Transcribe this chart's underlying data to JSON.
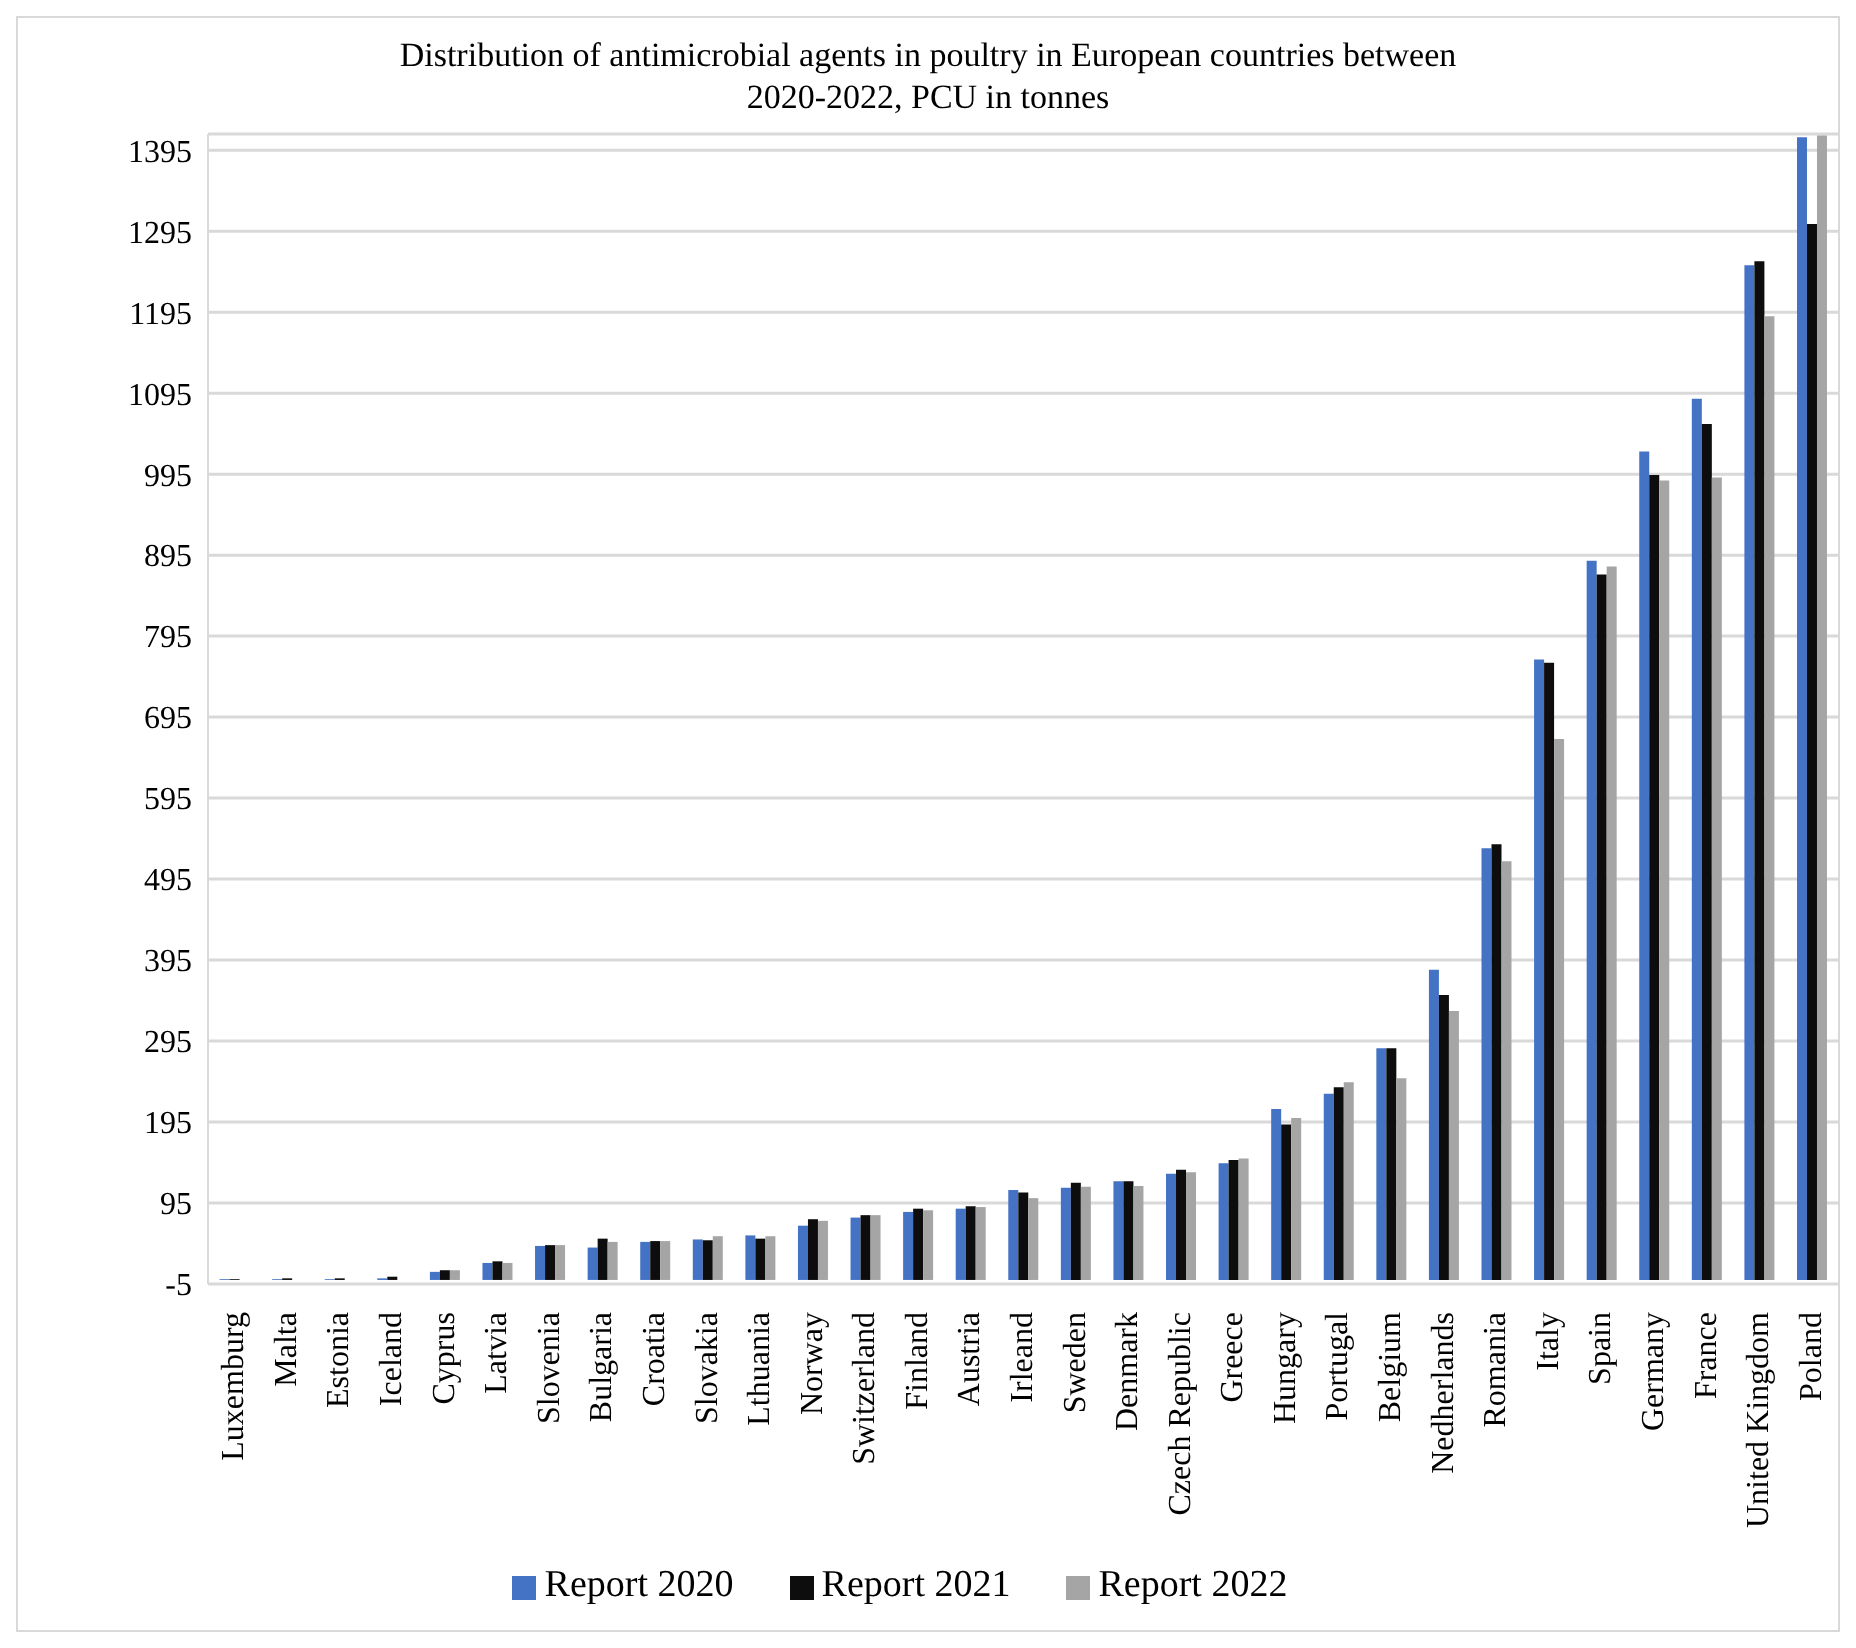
{
  "chart_data": {
    "type": "bar",
    "title": "Distribution of antimicrobial agents in poultry in European countries between 2020-2022, PCU in tonnes",
    "categories": [
      "Luxemburg",
      "Malta",
      "Estonia",
      "Iceland",
      "Cyprus",
      "Latvia",
      "Slovenia",
      "Bulgaria",
      "Croatia",
      "Slovakia",
      "Lthuania",
      "Norway",
      "Switzerland",
      "Finland",
      "Austria",
      "Irleand",
      "Sweden",
      "Denmark",
      "Czech Republic",
      "Greece",
      "Hungary",
      "Portugal",
      "Belgium",
      "Nedherlands",
      "Romania",
      "Italy",
      "Spain",
      "Germany",
      "France",
      "United Kingdom",
      "Poland"
    ],
    "series": [
      {
        "name": "Report 2020",
        "color": "#4472c4",
        "values": [
          1,
          1,
          1,
          2,
          10,
          21,
          42,
          40,
          47,
          50,
          55,
          67,
          77,
          84,
          88,
          111,
          114,
          122,
          131,
          144,
          211,
          230,
          286,
          383,
          533,
          766,
          888,
          1023,
          1088,
          1253,
          1411
        ]
      },
      {
        "name": "Report 2021",
        "color": "#0d0d0d",
        "values": [
          1,
          2,
          2,
          4,
          12,
          23,
          43,
          51,
          48,
          49,
          51,
          75,
          80,
          88,
          91,
          108,
          120,
          122,
          136,
          148,
          192,
          238,
          286,
          352,
          538,
          762,
          871,
          994,
          1057,
          1258,
          1304
        ]
      },
      {
        "name": "Report 2022",
        "color": "#a5a5a5",
        "values": [
          null,
          null,
          null,
          null,
          12,
          21,
          43,
          47,
          48,
          54,
          54,
          73,
          80,
          86,
          90,
          101,
          115,
          116,
          133,
          150,
          200,
          244,
          249,
          332,
          517,
          668,
          881,
          987,
          991,
          1190,
          1413
        ]
      }
    ],
    "ylim": [
      -5,
      1415
    ],
    "yticks": [
      -5,
      95,
      195,
      295,
      395,
      495,
      595,
      695,
      795,
      895,
      995,
      1095,
      1195,
      1295,
      1395
    ],
    "grid": "y",
    "legend": "bottom"
  }
}
